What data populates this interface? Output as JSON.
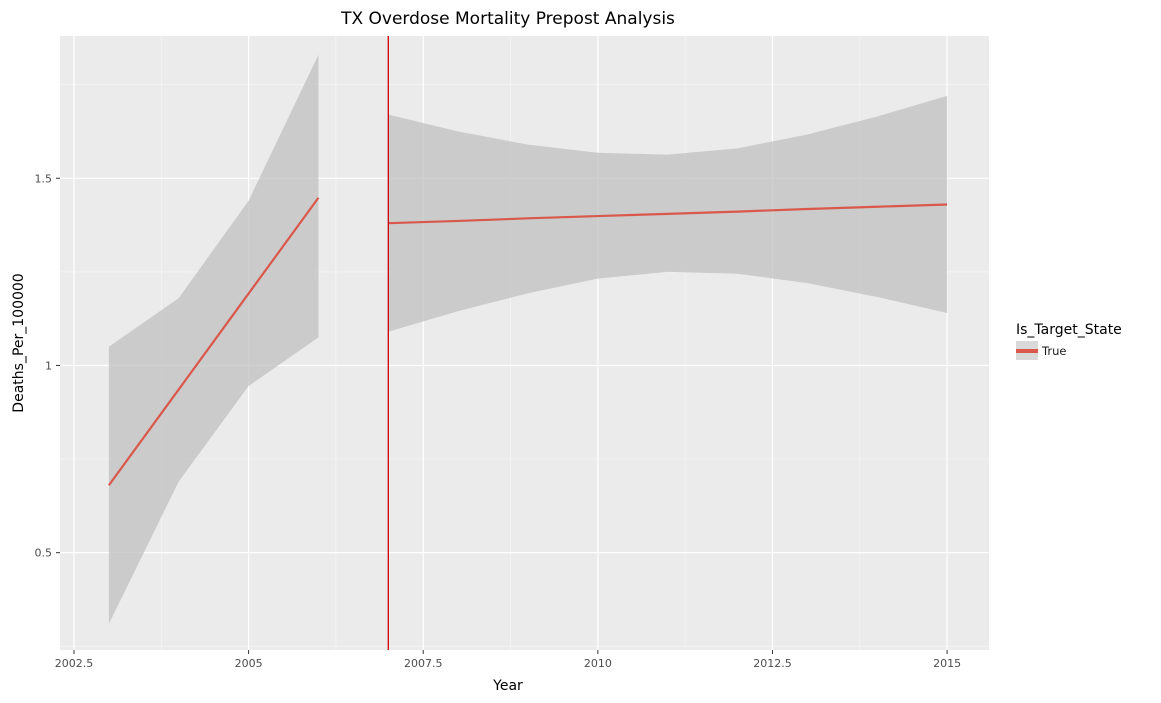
{
  "chart_data": {
    "type": "line",
    "title": "TX Overdose Mortality Prepost Analysis",
    "xlabel": "Year",
    "ylabel": "Deaths_Per_100000",
    "xlim": [
      2002.3,
      2015.6
    ],
    "ylim": [
      0.24,
      1.88
    ],
    "x_ticks": [
      2002.5,
      2005,
      2007.5,
      2010,
      2012.5,
      2015
    ],
    "x_tick_labels": [
      "2002.5",
      "2005",
      "2007.5",
      "2010",
      "2012.5",
      "2015"
    ],
    "y_ticks": [
      0.5,
      1.0,
      1.5
    ],
    "y_tick_labels": [
      "0.5",
      "1",
      "1.5"
    ],
    "grid": true,
    "panel_background": "#ebebeb",
    "legend": {
      "title": "Is_Target_State",
      "placement": "right",
      "entries": [
        {
          "label": "True",
          "color": "#d9584b"
        }
      ]
    },
    "vline": {
      "x": 2007,
      "color": "#cc0000"
    },
    "series": [
      {
        "name": "True",
        "color": "#d9584b",
        "ribbon_color": "#c0c0c0",
        "segments": [
          {
            "x": [
              2003,
              2004,
              2005,
              2006
            ],
            "y": [
              0.68,
              0.936,
              1.192,
              1.448
            ],
            "ymin": [
              0.31,
              0.69,
              0.945,
              1.075
            ],
            "ymax": [
              1.05,
              1.18,
              1.44,
              1.83
            ]
          },
          {
            "x": [
              2007,
              2008,
              2009,
              2010,
              2011,
              2012,
              2013,
              2014,
              2015
            ],
            "y": [
              1.38,
              1.386,
              1.393,
              1.399,
              1.405,
              1.411,
              1.418,
              1.424,
              1.43
            ],
            "ymin": [
              1.09,
              1.145,
              1.193,
              1.232,
              1.25,
              1.245,
              1.22,
              1.183,
              1.14
            ],
            "ymax": [
              1.67,
              1.625,
              1.59,
              1.568,
              1.563,
              1.58,
              1.617,
              1.665,
              1.72
            ]
          }
        ]
      }
    ]
  }
}
